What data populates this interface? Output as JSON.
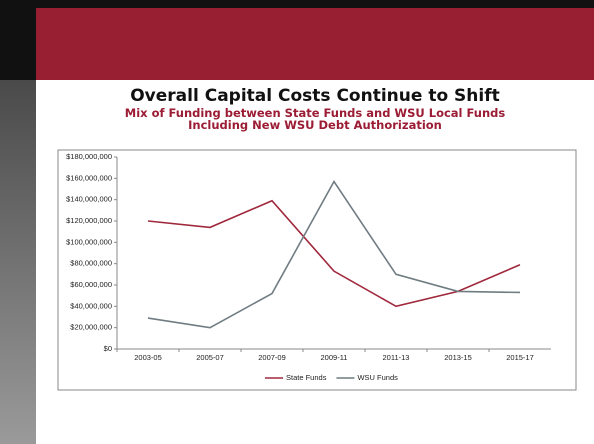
{
  "chart_data": {
    "type": "line",
    "title": "Overall Capital Costs Continue to Shift",
    "subtitle": [
      "Mix of Funding between State Funds and WSU Local Funds",
      "Including New WSU Debt Authorization"
    ],
    "categories": [
      "2003-05",
      "2005-07",
      "2007-09",
      "2009-11",
      "2011-13",
      "2013-15",
      "2015-17"
    ],
    "series": [
      {
        "name": "State Funds",
        "color": "#a0283c",
        "values": [
          120000000,
          114000000,
          139000000,
          73000000,
          40000000,
          54000000,
          79000000
        ]
      },
      {
        "name": "WSU Funds",
        "color": "#6f7c82",
        "values": [
          29000000,
          20000000,
          52000000,
          157000000,
          70000000,
          54000000,
          53000000
        ]
      }
    ],
    "ylim": [
      0,
      180000000
    ],
    "yticks": [
      {
        "value": 0,
        "label": "$0"
      },
      {
        "value": 20000000,
        "label": "$20,000,000"
      },
      {
        "value": 40000000,
        "label": "$40,000,000"
      },
      {
        "value": 60000000,
        "label": "$60,000,000"
      },
      {
        "value": 80000000,
        "label": "$80,000,000"
      },
      {
        "value": 100000000,
        "label": "$100,000,000"
      },
      {
        "value": 120000000,
        "label": "$120,000,000"
      },
      {
        "value": 140000000,
        "label": "$140,000,000"
      },
      {
        "value": 160000000,
        "label": "$160,000,000"
      },
      {
        "value": 180000000,
        "label": "$180,000,000"
      }
    ],
    "grid": false,
    "legend": "bottom"
  }
}
